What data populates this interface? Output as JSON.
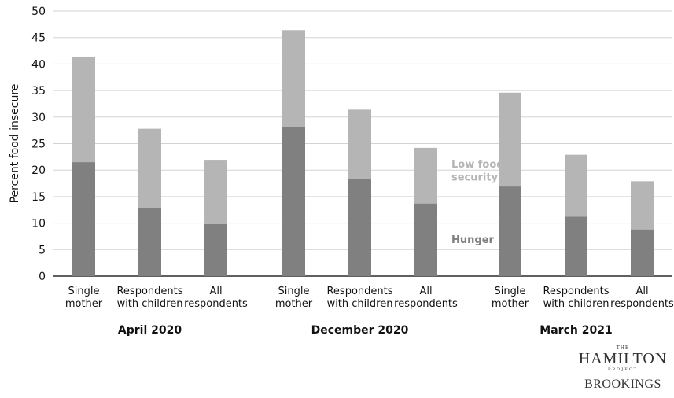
{
  "chart_data": {
    "type": "bar",
    "stacked": true,
    "ylabel": "Percent food insecure",
    "ylim": [
      0,
      50
    ],
    "yticks": [
      0,
      5,
      10,
      15,
      20,
      25,
      30,
      35,
      40,
      45,
      50
    ],
    "grid": true,
    "groups": [
      {
        "label": "April 2020",
        "categories": [
          "Single mother",
          "Respondents with children",
          "All respondents"
        ],
        "category_lines": [
          [
            "Single",
            "mother"
          ],
          [
            "Respondents",
            "with children"
          ],
          [
            "All",
            "respondents"
          ]
        ],
        "hunger": [
          21.5,
          12.8,
          9.8
        ],
        "total": [
          41.4,
          27.8,
          21.8
        ]
      },
      {
        "label": "December 2020",
        "categories": [
          "Single mother",
          "Respondents with children",
          "All respondents"
        ],
        "category_lines": [
          [
            "Single",
            "mother"
          ],
          [
            "Respondents",
            "with children"
          ],
          [
            "All",
            "respondents"
          ]
        ],
        "hunger": [
          28.1,
          18.3,
          13.7
        ],
        "total": [
          46.4,
          31.4,
          24.2
        ]
      },
      {
        "label": "March 2021",
        "categories": [
          "Single mother",
          "Respondents with children",
          "All respondents"
        ],
        "category_lines": [
          [
            "Single",
            "mother"
          ],
          [
            "Respondents",
            "with children"
          ],
          [
            "All",
            "respondents"
          ]
        ],
        "hunger": [
          16.9,
          11.2,
          8.8
        ],
        "total": [
          34.6,
          22.9,
          17.9
        ]
      }
    ],
    "series": [
      {
        "name": "Hunger",
        "color": "#808080"
      },
      {
        "name": "Low food security",
        "color": "#b5b5b5"
      }
    ],
    "annotations": {
      "low_food_security": [
        "Low food",
        "security"
      ],
      "hunger": "Hunger"
    }
  },
  "logo": {
    "the": "THE",
    "hamilton": "HAMILTON",
    "project": "PROJECT",
    "brookings": "BROOKINGS"
  }
}
